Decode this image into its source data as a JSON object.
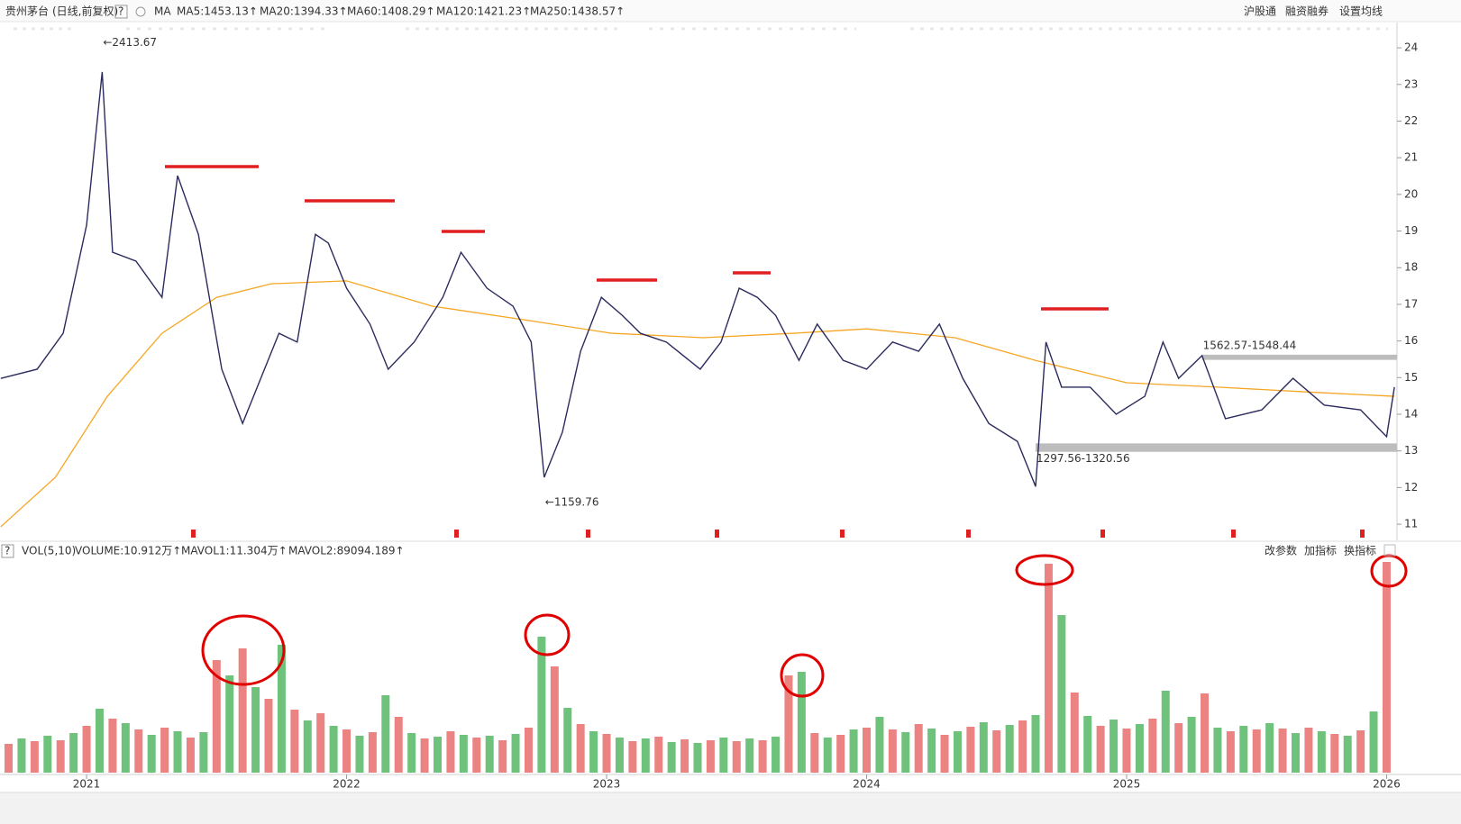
{
  "header": {
    "stock": "贵州茅台",
    "period": "(日线,前复权)",
    "help": "?",
    "indicator": "MA",
    "ma_labels": [
      {
        "text": "MA5:1453.13↑",
        "color": "#1a237e"
      },
      {
        "text": "MA20:1394.33↑",
        "color": "#888888"
      },
      {
        "text": "MA60:1408.29↑",
        "color": "#1a9e1a"
      },
      {
        "text": "MA120:1421.23↑",
        "color": "#1e88e5"
      },
      {
        "text": "MA250:1438.57↑",
        "color": "#f5a623"
      }
    ],
    "links": [
      "沪股通",
      "融资融券",
      "设置均线"
    ]
  },
  "volume_panel": {
    "help": "?",
    "labels": [
      {
        "text": "VOL(5,10)",
        "color": "#333333"
      },
      {
        "text": "VOLUME:10.912万↑",
        "color": "#1a237e"
      },
      {
        "text": "MAVOL1:11.304万↑",
        "color": "#e040fb"
      },
      {
        "text": "MAVOL2:89094.189↑",
        "color": "#888888"
      }
    ],
    "buttons": [
      "改参数",
      "加指标",
      "换指标"
    ]
  },
  "chart_data": [
    {
      "type": "line",
      "color": "#2b2b5e",
      "x": [
        2020.67,
        2020.81,
        2020.91,
        2021.0,
        2021.06,
        2021.1,
        2021.19,
        2021.29,
        2021.35,
        2021.43,
        2021.52,
        2021.6,
        2021.67,
        2021.74,
        2021.81,
        2021.88,
        2021.93,
        2022.0,
        2022.09,
        2022.16,
        2022.26,
        2022.37,
        2022.44,
        2022.54,
        2022.64,
        2022.71,
        2022.76,
        2022.83,
        2022.9,
        2022.98,
        2023.06,
        2023.13,
        2023.23,
        2023.36,
        2023.44,
        2023.51,
        2023.58,
        2023.65,
        2023.74,
        2023.81,
        2023.91,
        2024.0,
        2024.1,
        2024.2,
        2024.28,
        2024.37,
        2024.47,
        2024.58,
        2024.65,
        2024.69,
        2024.75,
        2024.86,
        2024.96,
        2025.07,
        2025.14,
        2025.2,
        2025.29,
        2025.38,
        2025.52,
        2025.64,
        2025.76,
        2025.9,
        2026.0,
        2026.03
      ],
      "values": [
        1498,
        1523,
        1621,
        1916,
        2334,
        1842,
        1818,
        1719,
        2051,
        1891,
        1523,
        1375,
        1498,
        1621,
        1597,
        1891,
        1867,
        1744,
        1646,
        1523,
        1597,
        1719,
        1842,
        1744,
        1695,
        1597,
        1228,
        1351,
        1572,
        1719,
        1670,
        1621,
        1597,
        1523,
        1597,
        1744,
        1719,
        1670,
        1547,
        1646,
        1547,
        1523,
        1597,
        1572,
        1646,
        1498,
        1375,
        1326,
        1203,
        1597,
        1474,
        1474,
        1400,
        1449,
        1597,
        1498,
        1560,
        1388,
        1412,
        1498,
        1425,
        1412,
        1339,
        1474
      ],
      "overlay": {
        "color": "#f5a623",
        "x": [
          2020.67,
          2020.88,
          2021.08,
          2021.29,
          2021.5,
          2021.71,
          2022.0,
          2022.33,
          2022.68,
          2023.02,
          2023.37,
          2023.72,
          2024.0,
          2024.34,
          2024.65,
          2025.0,
          2025.35,
          2025.69,
          2026.03
        ],
        "values": [
          1093,
          1228,
          1449,
          1621,
          1719,
          1756,
          1764,
          1695,
          1658,
          1621,
          1609,
          1621,
          1633,
          1609,
          1547,
          1486,
          1474,
          1461,
          1449
        ]
      },
      "xlim": [
        2020.667,
        2026.04
      ],
      "ylim": [
        1056,
        2469
      ],
      "yticks": [
        {
          "value": 2400,
          "label": "24"
        },
        {
          "value": 2300,
          "label": "23"
        },
        {
          "value": 2200,
          "label": "22"
        },
        {
          "value": 2100,
          "label": "21"
        },
        {
          "value": 2000,
          "label": "20"
        },
        {
          "value": 1900,
          "label": "19"
        },
        {
          "value": 1800,
          "label": "18"
        },
        {
          "value": 1700,
          "label": "17"
        },
        {
          "value": 1600,
          "label": "16"
        },
        {
          "value": 1500,
          "label": "15"
        },
        {
          "value": 1400,
          "label": "14"
        },
        {
          "value": 1300,
          "label": "13"
        },
        {
          "value": 1200,
          "label": "12"
        },
        {
          "value": 1100,
          "label": "11"
        }
      ],
      "annotations": [
        {
          "text": "←2413.67",
          "x": 2021.06,
          "y": 2413.67,
          "color": "#f26b1d"
        },
        {
          "text": "←1159.76",
          "x": 2022.76,
          "y": 1159.76,
          "color": "#f26b1d"
        }
      ],
      "zones": [
        {
          "label": "1562.57-1548.44",
          "high": 1562.57,
          "low": 1548.44,
          "x0": 2025.29,
          "x1": 2026.04,
          "color": "#bdbdbd"
        },
        {
          "label": "1297.56-1320.56",
          "high": 1320.56,
          "low": 1297.56,
          "x0": 2024.65,
          "x1": 2026.04,
          "color": "#bdbdbd"
        }
      ]
    },
    {
      "type": "bar",
      "colors": [
        "#e65a5a",
        "#3fae4f"
      ],
      "x": [
        2020.7,
        2020.75,
        2020.8,
        2020.85,
        2020.9,
        2020.95,
        2021,
        2021.05,
        2021.1,
        2021.15,
        2021.2,
        2021.25,
        2021.3,
        2021.35,
        2021.4,
        2021.45,
        2021.5,
        2021.55,
        2021.6,
        2021.65,
        2021.7,
        2021.75,
        2021.8,
        2021.85,
        2021.9,
        2021.95,
        2022,
        2022.05,
        2022.1,
        2022.15,
        2022.2,
        2022.25,
        2022.3,
        2022.35,
        2022.4,
        2022.45,
        2022.5,
        2022.55,
        2022.6,
        2022.65,
        2022.7,
        2022.75,
        2022.8,
        2022.85,
        2022.9,
        2022.95,
        2023,
        2023.05,
        2023.1,
        2023.15,
        2023.2,
        2023.25,
        2023.3,
        2023.35,
        2023.4,
        2023.45,
        2023.5,
        2023.55,
        2023.6,
        2023.65,
        2023.7,
        2023.75,
        2023.8,
        2023.85,
        2023.9,
        2023.95,
        2024,
        2024.05,
        2024.1,
        2024.15,
        2024.2,
        2024.25,
        2024.3,
        2024.35,
        2024.4,
        2024.45,
        2024.5,
        2024.55,
        2024.6,
        2024.65,
        2024.7,
        2024.75,
        2024.8,
        2024.85,
        2024.9,
        2024.95,
        2025,
        2025.05,
        2025.1,
        2025.15,
        2025.2,
        2025.25,
        2025.3,
        2025.35,
        2025.4,
        2025.45,
        2025.5,
        2025.55,
        2025.6,
        2025.65,
        2025.7,
        2025.75,
        2025.8,
        2025.85,
        2025.9,
        2025.95,
        2026
      ],
      "values": [
        3.2,
        3.8,
        3.5,
        4.1,
        3.6,
        4.4,
        5.2,
        7.1,
        6.0,
        5.5,
        4.8,
        4.2,
        5.0,
        4.6,
        3.9,
        4.5,
        12.5,
        10.8,
        13.8,
        9.5,
        8.2,
        14.2,
        7.0,
        5.8,
        6.6,
        5.2,
        4.8,
        4.1,
        4.5,
        8.6,
        6.2,
        4.4,
        3.8,
        4.0,
        4.6,
        4.2,
        3.9,
        4.1,
        3.6,
        4.3,
        5.0,
        15.1,
        11.8,
        7.2,
        5.4,
        4.6,
        4.3,
        3.9,
        3.5,
        3.8,
        4.0,
        3.4,
        3.7,
        3.3,
        3.6,
        3.9,
        3.5,
        3.8,
        3.6,
        4.0,
        10.8,
        11.2,
        4.4,
        3.9,
        4.2,
        4.8,
        5.0,
        6.2,
        4.8,
        4.5,
        5.4,
        4.9,
        4.2,
        4.6,
        5.1,
        5.6,
        4.7,
        5.3,
        5.8,
        6.4,
        23.2,
        17.5,
        8.9,
        6.3,
        5.2,
        5.9,
        4.9,
        5.4,
        6.0,
        9.1,
        5.5,
        6.2,
        8.8,
        5.0,
        4.6,
        5.2,
        4.8,
        5.5,
        4.9,
        4.4,
        5.0,
        4.6,
        4.3,
        4.1,
        4.7,
        6.8,
        23.4
      ],
      "xlim": [
        2020.667,
        2026.04
      ],
      "ylim": [
        0,
        23.6
      ],
      "xticks": [
        2021,
        2022,
        2023,
        2024,
        2025,
        2026
      ]
    }
  ]
}
